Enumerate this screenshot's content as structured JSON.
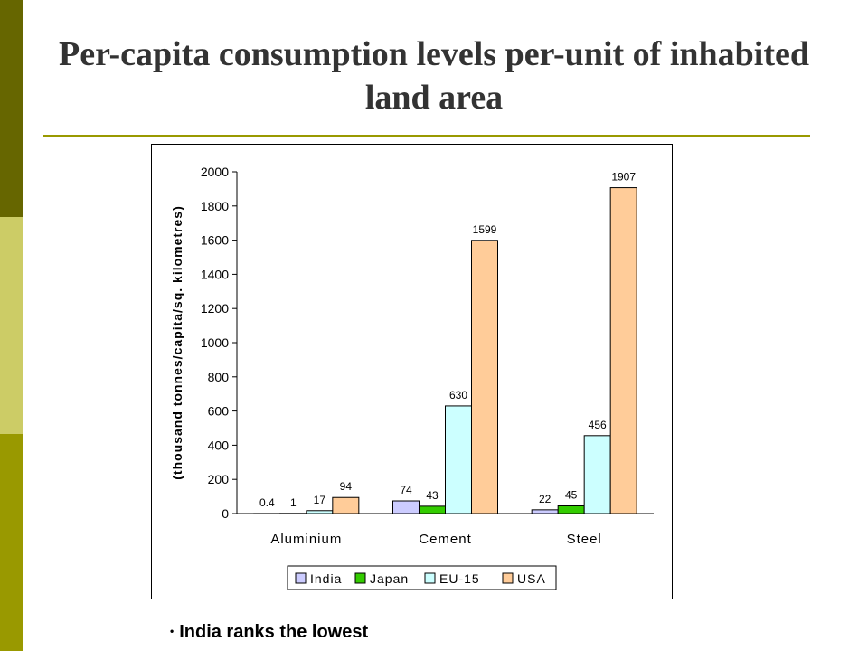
{
  "slide": {
    "title": "Per-capita consumption levels per-unit of inhabited land area",
    "bullet": "India ranks the lowest"
  },
  "colors": {
    "sidebar": [
      "#666600",
      "#cccc66",
      "#999900"
    ],
    "rule": "#999900",
    "series": [
      "#ccccff",
      "#33cc00",
      "#ccffff",
      "#ffcc99"
    ]
  },
  "chart_data": {
    "type": "bar",
    "categories": [
      "Aluminium",
      "Cement",
      "Steel"
    ],
    "series": [
      {
        "name": "India",
        "values": [
          0.4,
          74,
          22
        ],
        "labels": [
          "0.4",
          "74",
          "22"
        ]
      },
      {
        "name": "Japan",
        "values": [
          1,
          43,
          45
        ],
        "labels": [
          "1",
          "43",
          "45"
        ]
      },
      {
        "name": "EU-15",
        "values": [
          17,
          630,
          456
        ],
        "labels": [
          "17",
          "630",
          "456"
        ]
      },
      {
        "name": "USA",
        "values": [
          94,
          1599,
          1907
        ],
        "labels": [
          "94",
          "1599",
          "1907"
        ]
      }
    ],
    "ylabel": "(thousand tonnes/capita/sq. kilometres)",
    "ylim": [
      0,
      2000
    ],
    "yticks": [
      0,
      200,
      400,
      600,
      800,
      1000,
      1200,
      1400,
      1600,
      1800,
      2000
    ],
    "legend": "bottom",
    "grid": false
  }
}
